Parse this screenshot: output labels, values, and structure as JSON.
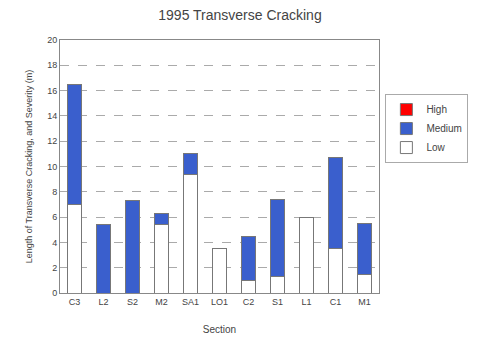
{
  "chart_data": {
    "type": "bar",
    "stacked": true,
    "title": "1995 Transverse Cracking",
    "xlabel": "Section",
    "ylabel": "Length of Transverse Cracking, and Severity (m)",
    "categories": [
      "C3",
      "L2",
      "S2",
      "M2",
      "SA1",
      "LO1",
      "C2",
      "S1",
      "L1",
      "C1",
      "M1"
    ],
    "series": [
      {
        "name": "Low",
        "color": "#ffffff",
        "values": [
          7.0,
          0.0,
          0.0,
          5.4,
          9.4,
          3.5,
          1.0,
          1.3,
          6.0,
          3.5,
          1.5
        ]
      },
      {
        "name": "Medium",
        "color": "#3a5fcd",
        "values": [
          9.5,
          5.4,
          7.3,
          0.9,
          1.6,
          0.0,
          3.5,
          6.1,
          0.0,
          7.2,
          4.0
        ]
      },
      {
        "name": "High",
        "color": "#ff0000",
        "values": [
          0.0,
          0.0,
          0.0,
          0.0,
          0.0,
          0.0,
          0.0,
          0.0,
          0.0,
          0.0,
          0.0
        ]
      }
    ],
    "ylim": [
      0,
      20
    ],
    "yticks": [
      0,
      2,
      4,
      6,
      8,
      10,
      12,
      14,
      16,
      18,
      20
    ],
    "grid": true,
    "legend": "right"
  }
}
